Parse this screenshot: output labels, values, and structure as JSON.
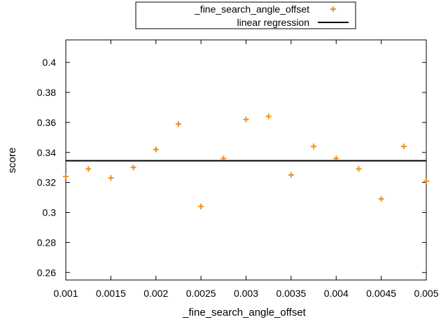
{
  "chart_data": {
    "type": "scatter",
    "xlabel": "_fine_search_angle_offset",
    "ylabel": "score",
    "xlim": [
      0.001,
      0.005
    ],
    "ylim": [
      0.255,
      0.415
    ],
    "x_ticks": [
      "0.001",
      "0.0015",
      "0.002",
      "0.0025",
      "0.003",
      "0.0035",
      "0.004",
      "0.0045",
      "0.005"
    ],
    "x_tick_values": [
      0.001,
      0.0015,
      0.002,
      0.0025,
      0.003,
      0.0035,
      0.004,
      0.0045,
      0.005
    ],
    "y_ticks": [
      "0.26",
      "0.28",
      "0.3",
      "0.32",
      "0.34",
      "0.36",
      "0.38",
      "0.4"
    ],
    "y_tick_values": [
      0.26,
      0.28,
      0.3,
      0.32,
      0.34,
      0.36,
      0.38,
      0.4
    ],
    "grid": false,
    "legend_position": "top-center-outside",
    "series": [
      {
        "name": "_fine_search_angle_offset",
        "kind": "points",
        "marker": "plus",
        "color": "#f28e1c",
        "x": [
          0.001,
          0.00125,
          0.0015,
          0.00175,
          0.002,
          0.00225,
          0.0025,
          0.00275,
          0.003,
          0.00325,
          0.0035,
          0.00375,
          0.004,
          0.00425,
          0.0045,
          0.00475,
          0.005
        ],
        "y": [
          0.324,
          0.329,
          0.323,
          0.33,
          0.342,
          0.359,
          0.304,
          0.336,
          0.362,
          0.364,
          0.325,
          0.344,
          0.336,
          0.329,
          0.309,
          0.344,
          0.321
        ]
      },
      {
        "name": "linear regression",
        "kind": "line",
        "color": "#000000",
        "x": [
          0.001,
          0.005
        ],
        "y": [
          0.3345,
          0.3345
        ]
      }
    ]
  }
}
